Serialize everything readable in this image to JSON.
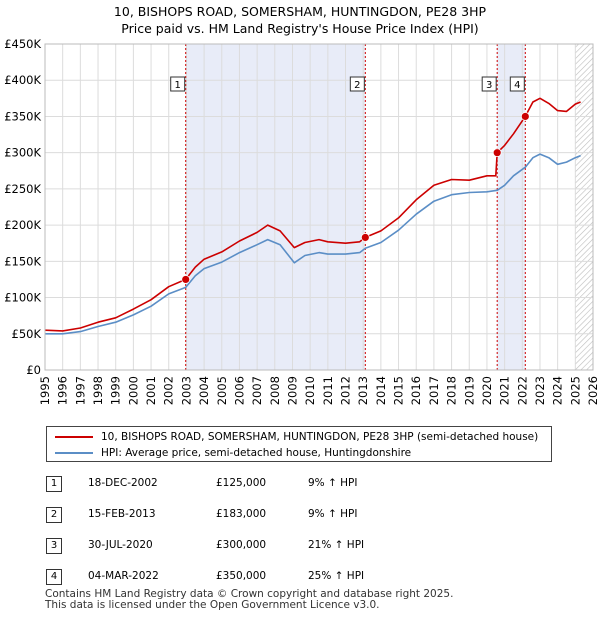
{
  "header": {
    "title_line1": "10, BISHOPS ROAD, SOMERSHAM, HUNTINGDON, PE28 3HP",
    "title_line2": "Price paid vs. HM Land Registry's House Price Index (HPI)"
  },
  "colors": {
    "price_line": "#cc0000",
    "hpi_line": "#5b8ec6",
    "shade": "#e8ecf8",
    "grid": "#dcdcdc",
    "marker_dash": "#cc0000"
  },
  "chart_data": {
    "type": "line",
    "title": "Price paid vs. HM Land Registry's House Price Index (HPI)",
    "xlabel": "",
    "ylabel": "",
    "xlim": [
      1995,
      2026
    ],
    "ylim": [
      0,
      450000
    ],
    "x_ticks": [
      "1995",
      "1996",
      "1997",
      "1998",
      "1999",
      "2000",
      "2001",
      "2002",
      "2003",
      "2004",
      "2005",
      "2006",
      "2007",
      "2008",
      "2009",
      "2010",
      "2011",
      "2012",
      "2013",
      "2014",
      "2015",
      "2016",
      "2017",
      "2018",
      "2019",
      "2020",
      "2021",
      "2022",
      "2023",
      "2024",
      "2025",
      "2026"
    ],
    "y_ticks": [
      {
        "value": 0,
        "label": "£0"
      },
      {
        "value": 50000,
        "label": "£50K"
      },
      {
        "value": 100000,
        "label": "£100K"
      },
      {
        "value": 150000,
        "label": "£150K"
      },
      {
        "value": 200000,
        "label": "£200K"
      },
      {
        "value": 250000,
        "label": "£250K"
      },
      {
        "value": 300000,
        "label": "£300K"
      },
      {
        "value": 350000,
        "label": "£350K"
      },
      {
        "value": 400000,
        "label": "£400K"
      },
      {
        "value": 450000,
        "label": "£450K"
      }
    ],
    "shaded_ranges": [
      [
        2002.96,
        2013.12
      ],
      [
        2020.58,
        2022.17
      ]
    ],
    "hatched_from": 2025.0,
    "series": [
      {
        "name": "10, BISHOPS ROAD, SOMERSHAM, HUNTINGDON, PE28 3HP (semi-detached house)",
        "color": "#cc0000",
        "points": [
          [
            1995,
            55000
          ],
          [
            1996,
            54000
          ],
          [
            1997,
            58000
          ],
          [
            1998,
            66000
          ],
          [
            1999,
            72000
          ],
          [
            2000,
            84000
          ],
          [
            2001,
            97000
          ],
          [
            2002,
            115000
          ],
          [
            2002.96,
            125000
          ],
          [
            2003.5,
            142000
          ],
          [
            2004,
            153000
          ],
          [
            2005,
            163000
          ],
          [
            2006,
            178000
          ],
          [
            2007,
            190000
          ],
          [
            2007.6,
            200000
          ],
          [
            2008.3,
            192000
          ],
          [
            2009.1,
            169000
          ],
          [
            2009.7,
            176000
          ],
          [
            2010.5,
            180000
          ],
          [
            2011,
            177000
          ],
          [
            2012,
            175000
          ],
          [
            2012.8,
            177000
          ],
          [
            2013.12,
            183000
          ],
          [
            2014,
            192000
          ],
          [
            2015,
            210000
          ],
          [
            2016,
            235000
          ],
          [
            2017,
            255000
          ],
          [
            2018,
            263000
          ],
          [
            2019,
            262000
          ],
          [
            2020,
            268000
          ],
          [
            2020.5,
            268000
          ],
          [
            2020.58,
            300000
          ],
          [
            2021,
            310000
          ],
          [
            2021.5,
            326000
          ],
          [
            2022.17,
            350000
          ],
          [
            2022.6,
            370000
          ],
          [
            2023,
            375000
          ],
          [
            2023.5,
            368000
          ],
          [
            2024,
            358000
          ],
          [
            2024.5,
            357000
          ],
          [
            2025,
            367000
          ],
          [
            2025.3,
            370000
          ]
        ]
      },
      {
        "name": "HPI: Average price, semi-detached house, Huntingdonshire",
        "color": "#5b8ec6",
        "points": [
          [
            1995,
            50000
          ],
          [
            1996,
            50000
          ],
          [
            1997,
            53000
          ],
          [
            1998,
            60000
          ],
          [
            1999,
            66000
          ],
          [
            2000,
            76000
          ],
          [
            2001,
            88000
          ],
          [
            2002,
            105000
          ],
          [
            2002.96,
            114000
          ],
          [
            2003.5,
            130000
          ],
          [
            2004,
            140000
          ],
          [
            2005,
            149000
          ],
          [
            2006,
            162000
          ],
          [
            2007,
            173000
          ],
          [
            2007.6,
            180000
          ],
          [
            2008.3,
            173000
          ],
          [
            2009.1,
            148000
          ],
          [
            2009.7,
            158000
          ],
          [
            2010.5,
            162000
          ],
          [
            2011,
            160000
          ],
          [
            2012,
            160000
          ],
          [
            2012.8,
            162000
          ],
          [
            2013.12,
            168000
          ],
          [
            2014,
            176000
          ],
          [
            2015,
            193000
          ],
          [
            2016,
            215000
          ],
          [
            2017,
            233000
          ],
          [
            2018,
            242000
          ],
          [
            2019,
            245000
          ],
          [
            2020,
            246000
          ],
          [
            2020.58,
            248000
          ],
          [
            2021,
            255000
          ],
          [
            2021.5,
            268000
          ],
          [
            2022.17,
            280000
          ],
          [
            2022.6,
            293000
          ],
          [
            2023,
            298000
          ],
          [
            2023.5,
            293000
          ],
          [
            2024,
            284000
          ],
          [
            2024.5,
            287000
          ],
          [
            2025,
            293000
          ],
          [
            2025.3,
            296000
          ]
        ]
      }
    ],
    "sale_markers": [
      {
        "label": "1",
        "x": 2002.96,
        "y": 125000
      },
      {
        "label": "2",
        "x": 2013.12,
        "y": 183000
      },
      {
        "label": "3",
        "x": 2020.58,
        "y": 300000
      },
      {
        "label": "4",
        "x": 2022.17,
        "y": 350000
      }
    ]
  },
  "legend": {
    "price_label": "10, BISHOPS ROAD, SOMERSHAM, HUNTINGDON, PE28 3HP (semi-detached house)",
    "hpi_label": "HPI: Average price, semi-detached house, Huntingdonshire"
  },
  "sales": [
    {
      "num": "1",
      "date": "18-DEC-2002",
      "price": "£125,000",
      "hpi": "9% ↑ HPI"
    },
    {
      "num": "2",
      "date": "15-FEB-2013",
      "price": "£183,000",
      "hpi": "9% ↑ HPI"
    },
    {
      "num": "3",
      "date": "30-JUL-2020",
      "price": "£300,000",
      "hpi": "21% ↑ HPI"
    },
    {
      "num": "4",
      "date": "04-MAR-2022",
      "price": "£350,000",
      "hpi": "25% ↑ HPI"
    }
  ],
  "footer": {
    "line1": "Contains HM Land Registry data © Crown copyright and database right 2025.",
    "line2": "This data is licensed under the Open Government Licence v3.0."
  }
}
